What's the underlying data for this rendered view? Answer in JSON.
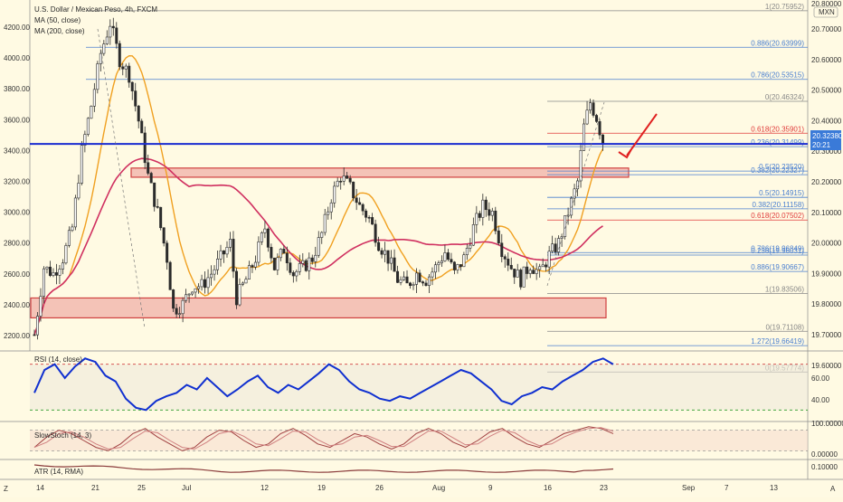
{
  "header": {
    "title": "U.S. Dollar / Mexican Peso, 4h, FXCM",
    "indicators": [
      "MA (50, close)",
      "MA (200, close)"
    ]
  },
  "currency_badge": "MXN",
  "last_price": {
    "value": "20.32380",
    "countdown": "20:21"
  },
  "panes": {
    "rsi": {
      "label": "RSI (14, close)",
      "ticks": [
        "60.00",
        "40.00"
      ]
    },
    "stoch": {
      "label": "SlowStoch (14, 3)",
      "ticks": [
        "100.00000",
        "0.00000"
      ]
    },
    "atr": {
      "label": "ATR (14, RMA)",
      "ticks": [
        "0.10000"
      ]
    }
  },
  "bottom_bar": {
    "left_button": "Z",
    "right_button": "A"
  },
  "colors": {
    "background": "#fffae3",
    "fib": "#4a7fd0",
    "fib_red": "#e03a3a",
    "ma50": "#f0a020",
    "ma200": "#d03060",
    "resistance": "#1a2bd0",
    "rsi": "#1030d0",
    "zone_fill": "#f0b0a8",
    "zone_stroke": "#d04040"
  },
  "chart_data": {
    "type": "candlestick",
    "symbol": "USDMXN",
    "timeframe": "4h",
    "y_left_ticks": [
      4200,
      4000,
      3800,
      3600,
      3400,
      3200,
      3000,
      2800,
      2600,
      2400,
      2200
    ],
    "y_right_ticks": [
      20.7,
      20.6,
      20.5,
      20.4,
      20.3,
      20.2,
      20.1,
      20.0,
      19.9,
      19.8,
      19.7,
      19.6
    ],
    "y_right_top_label": "20.80000",
    "x_ticks": [
      "14",
      "21",
      "25",
      "Jul",
      "12",
      "19",
      "26",
      "Aug",
      "9",
      "16",
      "23",
      "Sep",
      "7",
      "13"
    ],
    "fib_levels_top": [
      {
        "ratio": "1",
        "value": "20.75952"
      },
      {
        "ratio": "0.886",
        "value": "20.63999"
      },
      {
        "ratio": "0.786",
        "value": "20.53515"
      },
      {
        "ratio": "0",
        "value": "20.46324"
      },
      {
        "ratio": "0.618",
        "value": "20.35901"
      },
      {
        "ratio": "0.236",
        "value": "20.31499"
      },
      {
        "ratio": "0.5",
        "value": "20.23520"
      },
      {
        "ratio": "0.382",
        "value": "20.22327"
      }
    ],
    "fib_levels_bottom": [
      {
        "ratio": "0.5",
        "value": "20.14915"
      },
      {
        "ratio": "0.382",
        "value": "20.11158"
      },
      {
        "ratio": "0.618",
        "value": "20.07502"
      },
      {
        "ratio": "0.786",
        "value": "19.96849"
      },
      {
        "ratio": "0.236",
        "value": "19.96031"
      },
      {
        "ratio": "0.886",
        "value": "19.90667"
      },
      {
        "ratio": "1",
        "value": "19.83506"
      },
      {
        "ratio": "0",
        "value": "19.71108"
      },
      {
        "ratio": "1.272",
        "value": "19.66419"
      },
      {
        "ratio": "0",
        "value": "19.57774"
      }
    ],
    "resistance_price": 20.3238,
    "zones": [
      {
        "name": "upper-zone",
        "low": 20.215,
        "high": 20.245
      },
      {
        "name": "lower-zone",
        "low": 19.755,
        "high": 19.82
      }
    ],
    "close_path": [
      [
        0,
        19.7
      ],
      [
        3,
        19.92
      ],
      [
        6,
        19.9
      ],
      [
        9,
        19.95
      ],
      [
        12,
        20.05
      ],
      [
        15,
        20.3
      ],
      [
        18,
        20.45
      ],
      [
        21,
        20.62
      ],
      [
        24,
        20.72
      ],
      [
        27,
        20.6
      ],
      [
        30,
        20.55
      ],
      [
        33,
        20.4
      ],
      [
        36,
        20.22
      ],
      [
        39,
        20.1
      ],
      [
        42,
        19.95
      ],
      [
        44,
        19.78
      ],
      [
        47,
        19.8
      ],
      [
        50,
        19.86
      ],
      [
        53,
        19.86
      ],
      [
        56,
        19.9
      ],
      [
        59,
        19.95
      ],
      [
        62,
        20.0
      ],
      [
        64,
        19.82
      ],
      [
        67,
        19.88
      ],
      [
        70,
        19.95
      ],
      [
        73,
        20.05
      ],
      [
        76,
        19.92
      ],
      [
        79,
        19.98
      ],
      [
        82,
        19.9
      ],
      [
        85,
        19.92
      ],
      [
        88,
        19.95
      ],
      [
        91,
        20.03
      ],
      [
        94,
        20.15
      ],
      [
        97,
        20.22
      ],
      [
        100,
        20.18
      ],
      [
        103,
        20.12
      ],
      [
        106,
        20.08
      ],
      [
        109,
        20.0
      ],
      [
        112,
        19.95
      ],
      [
        115,
        19.88
      ],
      [
        118,
        19.86
      ],
      [
        121,
        19.9
      ],
      [
        124,
        19.88
      ],
      [
        127,
        19.92
      ],
      [
        130,
        19.97
      ],
      [
        133,
        19.9
      ],
      [
        136,
        19.95
      ],
      [
        139,
        20.05
      ],
      [
        142,
        20.12
      ],
      [
        145,
        20.1
      ],
      [
        148,
        19.98
      ],
      [
        151,
        19.92
      ],
      [
        154,
        19.88
      ],
      [
        157,
        19.93
      ],
      [
        160,
        19.9
      ],
      [
        163,
        19.96
      ],
      [
        166,
        20.0
      ],
      [
        169,
        20.1
      ],
      [
        172,
        20.2
      ],
      [
        174,
        20.38
      ],
      [
        176,
        20.46
      ],
      [
        178,
        20.41
      ],
      [
        180,
        20.33
      ]
    ],
    "rsi_range": [
      20,
      80
    ],
    "rsi_levels": [
      70,
      30
    ],
    "rsi_values": [
      45,
      65,
      70,
      58,
      68,
      75,
      72,
      60,
      55,
      40,
      32,
      30,
      38,
      42,
      45,
      52,
      48,
      58,
      50,
      42,
      48,
      55,
      60,
      50,
      45,
      52,
      48,
      55,
      62,
      70,
      65,
      55,
      48,
      45,
      40,
      38,
      42,
      40,
      45,
      50,
      55,
      60,
      65,
      62,
      55,
      48,
      38,
      35,
      42,
      45,
      50,
      48,
      55,
      60,
      65,
      72,
      75,
      70
    ],
    "stoch_range": [
      0,
      100
    ],
    "stoch_values": [
      30,
      60,
      80,
      70,
      50,
      30,
      20,
      40,
      70,
      85,
      60,
      40,
      20,
      30,
      60,
      80,
      75,
      50,
      30,
      40,
      70,
      85,
      65,
      40,
      30,
      50,
      70,
      60,
      40,
      25,
      40,
      70,
      85,
      70,
      45,
      30,
      50,
      75,
      85,
      60,
      40,
      30,
      50,
      70,
      80,
      90,
      85,
      70
    ]
  }
}
